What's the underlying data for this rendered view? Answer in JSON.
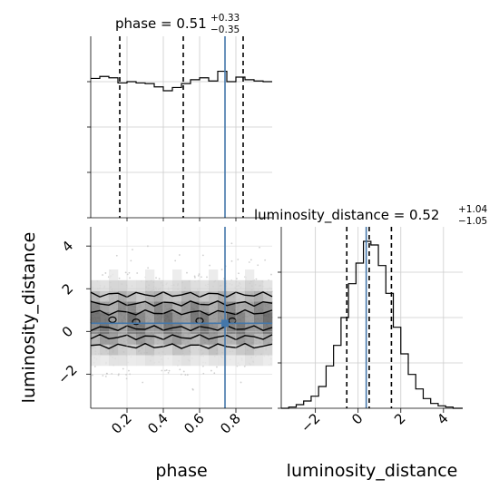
{
  "chart_data": [
    {
      "panel": "phase-marginal",
      "type": "histogram",
      "title": {
        "main": "phase = 0.51",
        "sup": "+0.33",
        "sub": "−0.35"
      },
      "xlim": [
        0.0,
        1.0
      ],
      "bins": [
        0.0,
        0.05,
        0.1,
        0.15,
        0.2,
        0.25,
        0.3,
        0.35,
        0.4,
        0.45,
        0.5,
        0.55,
        0.6,
        0.65,
        0.7,
        0.75,
        0.8,
        0.85,
        0.9,
        0.95,
        1.0
      ],
      "counts": [
        215,
        218,
        216,
        208,
        210,
        208,
        207,
        202,
        196,
        201,
        207,
        213,
        216,
        211,
        226,
        210,
        217,
        213,
        211,
        210
      ],
      "quantiles": [
        0.16,
        0.51,
        0.84
      ],
      "truth": 0.74
    },
    {
      "panel": "luminosity-distance-marginal",
      "type": "histogram",
      "title": {
        "main": "luminosity_distance = 0.52",
        "sup": "+1.04",
        "sub": "−1.05"
      },
      "xlim": [
        -3.6,
        4.9
      ],
      "bins": [
        -3.6,
        -3.25,
        -2.9,
        -2.55,
        -2.2,
        -1.85,
        -1.5,
        -1.15,
        -0.8,
        -0.45,
        -0.1,
        0.25,
        0.6,
        0.95,
        1.3,
        1.65,
        2.0,
        2.35,
        2.7,
        3.05,
        3.4,
        3.75,
        4.1,
        4.45,
        4.9
      ],
      "counts": [
        0,
        1,
        3,
        6,
        10,
        18,
        35,
        52,
        75,
        103,
        120,
        138,
        135,
        118,
        95,
        67,
        45,
        28,
        16,
        8,
        4,
        2,
        1,
        0
      ],
      "quantiles": [
        -0.53,
        0.52,
        1.56
      ],
      "truth": 0.38
    },
    {
      "panel": "joint",
      "type": "heatmap",
      "xlabel": "phase",
      "ylabel": "luminosity_distance",
      "xlim": [
        0.0,
        1.0
      ],
      "ylim": [
        -3.6,
        4.9
      ],
      "xticks": [
        "0.2",
        "0.4",
        "0.6",
        "0.8"
      ],
      "yticks": [
        "−2",
        "0",
        "2",
        "4"
      ],
      "truth": [
        0.74,
        0.38
      ],
      "contour_levels": [
        "inner",
        "mid",
        "outer"
      ]
    },
    {
      "panel": "luminosity-distance-axis",
      "type": "axis",
      "xlabel": "luminosity_distance",
      "xticks": [
        "−2",
        "0",
        "2",
        "4"
      ]
    }
  ],
  "colors": {
    "truth": "#4477aa",
    "hist": "#000000",
    "grid": "#cccccc",
    "scatter": "#bbbbbb"
  }
}
